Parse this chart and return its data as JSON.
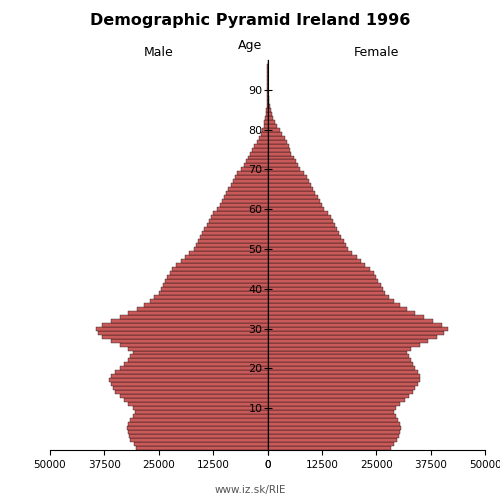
{
  "title": "Demographic Pyramid Ireland 1996",
  "male_label": "Male",
  "female_label": "Female",
  "age_label": "Age",
  "footer": "www.iz.sk/RIE",
  "xlim": 50000,
  "bar_color": "#C85A5A",
  "bar_edge_color": "#000000",
  "bar_linewidth": 0.25,
  "ages": [
    0,
    1,
    2,
    3,
    4,
    5,
    6,
    7,
    8,
    9,
    10,
    11,
    12,
    13,
    14,
    15,
    16,
    17,
    18,
    19,
    20,
    21,
    22,
    23,
    24,
    25,
    26,
    27,
    28,
    29,
    30,
    31,
    32,
    33,
    34,
    35,
    36,
    37,
    38,
    39,
    40,
    41,
    42,
    43,
    44,
    45,
    46,
    47,
    48,
    49,
    50,
    51,
    52,
    53,
    54,
    55,
    56,
    57,
    58,
    59,
    60,
    61,
    62,
    63,
    64,
    65,
    66,
    67,
    68,
    69,
    70,
    71,
    72,
    73,
    74,
    75,
    76,
    77,
    78,
    79,
    80,
    81,
    82,
    83,
    84,
    85,
    86,
    87,
    88,
    89,
    90,
    91,
    92,
    93,
    94,
    95,
    96,
    97
  ],
  "male": [
    30200,
    30800,
    31500,
    31800,
    32000,
    32200,
    32000,
    31500,
    31000,
    30500,
    31000,
    32000,
    33000,
    34000,
    35000,
    35500,
    36000,
    36500,
    36000,
    35000,
    34000,
    33000,
    32000,
    31500,
    31000,
    32000,
    34000,
    36000,
    38000,
    39000,
    39500,
    38000,
    36000,
    34000,
    32000,
    30000,
    28500,
    27000,
    26000,
    25000,
    24500,
    24000,
    23500,
    23000,
    22500,
    22000,
    21000,
    20000,
    19000,
    18000,
    17000,
    16500,
    16000,
    15500,
    15000,
    14500,
    14000,
    13500,
    13000,
    12500,
    11500,
    11000,
    10500,
    10000,
    9500,
    9000,
    8500,
    8000,
    7500,
    7000,
    6000,
    5500,
    5000,
    4500,
    4000,
    3500,
    3000,
    2500,
    2000,
    1600,
    1200,
    900,
    700,
    500,
    380,
    270,
    190,
    130,
    90,
    60,
    35,
    20,
    12,
    7,
    3,
    2,
    1,
    0
  ],
  "female": [
    28500,
    29000,
    29800,
    30200,
    30500,
    30800,
    30500,
    30000,
    29500,
    29000,
    29500,
    30500,
    31500,
    32500,
    33500,
    34000,
    34500,
    35000,
    35000,
    34500,
    34000,
    33500,
    33000,
    32500,
    32000,
    33000,
    35000,
    37000,
    39000,
    40500,
    41500,
    40000,
    38000,
    36000,
    34000,
    32000,
    30500,
    29000,
    28000,
    27000,
    26500,
    26000,
    25500,
    25000,
    24500,
    23500,
    22500,
    21500,
    20500,
    19500,
    18500,
    18000,
    17500,
    17000,
    16500,
    16000,
    15500,
    15000,
    14500,
    14000,
    13000,
    12500,
    12000,
    11500,
    11000,
    10500,
    10000,
    9500,
    9000,
    8500,
    7500,
    7000,
    6500,
    6000,
    5500,
    5200,
    4900,
    4500,
    4000,
    3400,
    2800,
    2200,
    1700,
    1300,
    1000,
    750,
    550,
    400,
    280,
    190,
    120,
    75,
    45,
    28,
    16,
    9,
    4,
    2
  ]
}
